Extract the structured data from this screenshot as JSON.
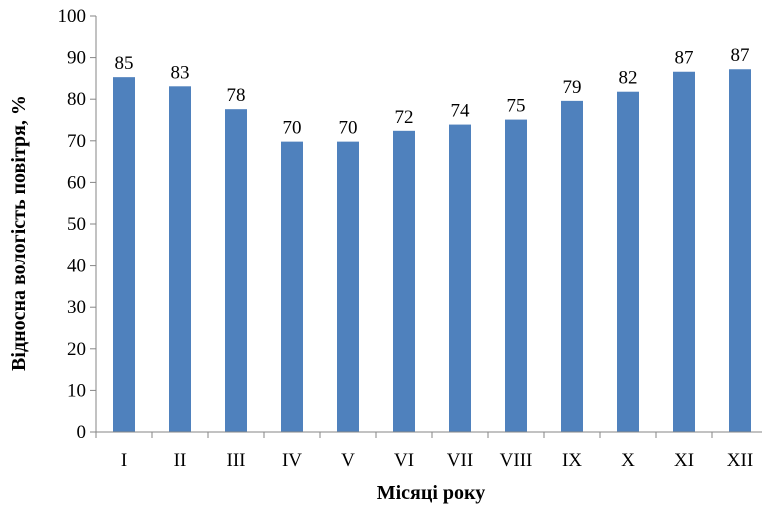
{
  "chart_data": {
    "type": "bar",
    "categories": [
      "I",
      "II",
      "III",
      "IV",
      "V",
      "VI",
      "VII",
      "VIII",
      "IX",
      "X",
      "XI",
      "XII"
    ],
    "values": [
      85,
      83,
      78,
      70,
      70,
      72,
      74,
      75,
      79,
      82,
      87,
      87
    ],
    "bar_heights_read": [
      85.3,
      83.1,
      77.6,
      69.8,
      69.8,
      72.4,
      73.9,
      75.1,
      79.6,
      81.8,
      86.6,
      87.2
    ],
    "xlabel": "Місяці року",
    "ylabel": "Відносна вологість повітря, %",
    "ylim": [
      0,
      100
    ],
    "yticks": [
      0,
      10,
      20,
      30,
      40,
      50,
      60,
      70,
      80,
      90,
      100
    ],
    "grid": false,
    "bar_color": "#4F81BD"
  }
}
